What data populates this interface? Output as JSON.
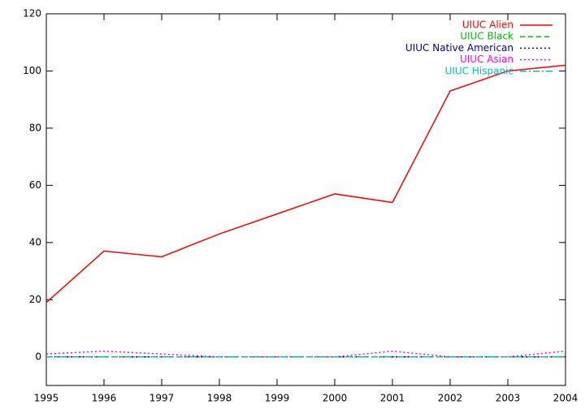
{
  "chart_data": {
    "type": "line",
    "x": [
      1995,
      1996,
      1997,
      1998,
      1999,
      2000,
      2001,
      2002,
      2003,
      2004
    ],
    "series": [
      {
        "name": "UIUC Alien",
        "color": "#ff0000",
        "dash": "solid",
        "values": [
          19,
          37,
          35,
          43,
          50,
          57,
          54,
          93,
          100,
          102
        ]
      },
      {
        "name": "UIUC Black",
        "color": "#00c000",
        "dash": "dashed",
        "values": [
          0,
          0,
          0,
          0,
          0,
          0,
          0,
          0,
          0,
          0
        ]
      },
      {
        "name": "UIUC Native American",
        "color": "#0000a0",
        "dash": "dotted",
        "values": [
          0,
          0,
          0,
          0,
          0,
          0,
          0,
          0,
          0,
          0
        ]
      },
      {
        "name": "UIUC Asian",
        "color": "#ff00ff",
        "dash": "dotted",
        "values": [
          1,
          2,
          1,
          0,
          0,
          0,
          2,
          0,
          0,
          2
        ]
      },
      {
        "name": "UIUC Hispanic",
        "color": "#00c0c0",
        "dash": "dashdot",
        "values": [
          0,
          0,
          0,
          0,
          0,
          0,
          0,
          0,
          0,
          0
        ]
      }
    ],
    "xlim": [
      1995,
      2004
    ],
    "xticks": [
      1995,
      1996,
      1997,
      1998,
      1999,
      2000,
      2001,
      2002,
      2003,
      2004
    ],
    "ylim": [
      -10,
      120
    ],
    "yticks": [
      0,
      20,
      40,
      60,
      80,
      100,
      120
    ],
    "grid": false,
    "legend": "top-right"
  }
}
